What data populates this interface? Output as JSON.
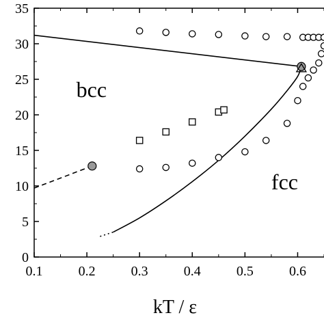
{
  "chart_data": {
    "type": "scatter",
    "title": "",
    "xlabel": "kT / ε",
    "ylabel": "",
    "xlim": [
      0.1,
      0.65
    ],
    "ylim": [
      0,
      35
    ],
    "grid": false,
    "legend": "none",
    "x_ticks": [
      0.1,
      0.2,
      0.3,
      0.4,
      0.5,
      0.6
    ],
    "x_tick_labels": [
      "0.1",
      "0.2",
      "0.3",
      "0.4",
      "0.5",
      "0.6"
    ],
    "y_ticks": [
      0,
      5,
      10,
      15,
      20,
      25,
      30,
      35
    ],
    "y_tick_labels": [
      "0",
      "5",
      "10",
      "15",
      "20",
      "25",
      "30",
      "35"
    ],
    "region_labels": [
      {
        "text": "bcc",
        "x": 0.18,
        "y": 22.5
      },
      {
        "text": "fcc",
        "x": 0.55,
        "y": 9.5
      }
    ],
    "series": [
      {
        "marker": "open-circle",
        "points": [
          [
            0.3,
            31.8
          ],
          [
            0.35,
            31.6
          ],
          [
            0.4,
            31.4
          ],
          [
            0.45,
            31.3
          ],
          [
            0.5,
            31.1
          ],
          [
            0.54,
            31.0
          ],
          [
            0.58,
            31.0
          ],
          [
            0.61,
            30.9
          ],
          [
            0.62,
            30.9
          ],
          [
            0.63,
            30.9
          ],
          [
            0.64,
            30.9
          ],
          [
            0.65,
            30.9
          ]
        ]
      },
      {
        "marker": "open-circle",
        "points": [
          [
            0.3,
            12.4
          ],
          [
            0.35,
            12.6
          ],
          [
            0.4,
            13.2
          ],
          [
            0.45,
            14.0
          ],
          [
            0.5,
            14.8
          ],
          [
            0.54,
            16.4
          ],
          [
            0.58,
            18.8
          ],
          [
            0.6,
            22.0
          ],
          [
            0.61,
            24.0
          ],
          [
            0.62,
            25.2
          ],
          [
            0.63,
            26.3
          ],
          [
            0.64,
            27.3
          ],
          [
            0.645,
            28.6
          ],
          [
            0.65,
            29.7
          ]
        ]
      },
      {
        "marker": "open-square",
        "points": [
          [
            0.3,
            16.4
          ],
          [
            0.35,
            17.6
          ],
          [
            0.4,
            19.0
          ],
          [
            0.45,
            20.4
          ],
          [
            0.46,
            20.7
          ]
        ]
      },
      {
        "marker": "filled-circle",
        "points": [
          [
            0.21,
            12.8
          ],
          [
            0.607,
            26.8
          ]
        ]
      },
      {
        "marker": "open-triangle",
        "points": [
          [
            0.607,
            26.5
          ]
        ]
      }
    ],
    "lines": [
      {
        "style": "solid",
        "points": [
          [
            0.1,
            31.2
          ],
          [
            0.607,
            26.8
          ]
        ]
      },
      {
        "style": "solid",
        "points": [
          [
            0.25,
            3.5
          ],
          [
            0.3,
            5.5
          ],
          [
            0.35,
            7.9
          ],
          [
            0.4,
            10.6
          ],
          [
            0.45,
            13.6
          ],
          [
            0.5,
            17.0
          ],
          [
            0.55,
            20.8
          ],
          [
            0.58,
            23.4
          ],
          [
            0.6,
            25.4
          ],
          [
            0.607,
            26.8
          ]
        ]
      },
      {
        "style": "dashed",
        "points": [
          [
            0.1,
            9.7
          ],
          [
            0.21,
            12.8
          ]
        ]
      },
      {
        "style": "dotted",
        "points": [
          [
            0.225,
            2.9
          ],
          [
            0.25,
            3.5
          ]
        ]
      }
    ]
  }
}
